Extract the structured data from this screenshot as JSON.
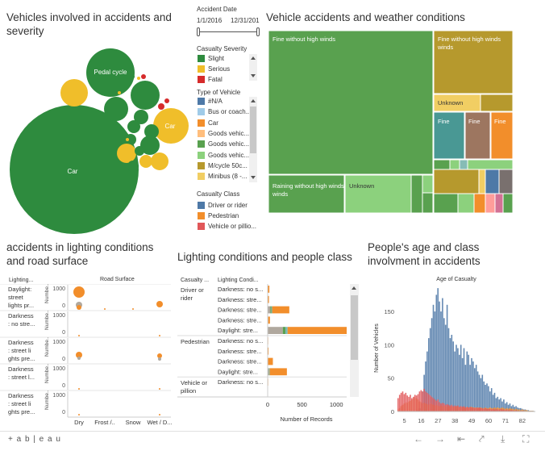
{
  "bubble": {
    "title_line1": "Vehicles involved in accidents and",
    "title_line2": "severity",
    "labels": {
      "car_big": "Car",
      "pedal_cycle": "Pedal cycle",
      "car_small": "Car"
    }
  },
  "filter": {
    "date_title": "Accident Date",
    "date_start": "1/1/2016",
    "date_end": "12/31/201",
    "severity_title": "Casualty Severity",
    "severity_items": [
      {
        "label": "Slight",
        "color": "#2e8b3e"
      },
      {
        "label": "Serious",
        "color": "#f0be2a"
      },
      {
        "label": "Fatal",
        "color": "#d62b2b"
      }
    ],
    "vehicle_title": "Type of Vehicle",
    "vehicle_items": [
      {
        "label": "#N/A",
        "color": "#4e79a7"
      },
      {
        "label": "Bus or coach..",
        "color": "#a0cbe8"
      },
      {
        "label": "Car",
        "color": "#f28e2b"
      },
      {
        "label": "Goods vehic...",
        "color": "#ffbe7d"
      },
      {
        "label": "Goods vehic...",
        "color": "#59a14f"
      },
      {
        "label": "Goods vehic...",
        "color": "#8cd17d"
      },
      {
        "label": "M/cycle 50c...",
        "color": "#b6992d"
      },
      {
        "label": "Minibus (8 -...",
        "color": "#f1ce63"
      }
    ],
    "class_title": "Casualty Class",
    "class_items": [
      {
        "label": "Driver or rider",
        "color": "#4e79a7"
      },
      {
        "label": "Pedestrian",
        "color": "#f28e2b"
      },
      {
        "label": "Vehicle or pillio...",
        "color": "#e15759"
      }
    ]
  },
  "treemap": {
    "title": "Vehicle accidents and weather conditions",
    "labels": {
      "fine_big": "Fine without high winds",
      "fine_right": "Fine without high winds",
      "unknown_small": "Unknown",
      "fine1": "Fine",
      "fine2": "Fine",
      "fine3": "Fine",
      "raining": "Raining without high winds",
      "unknown_bottom": "Unknown"
    }
  },
  "lighting_road": {
    "title_line1": "accidents in lighting conditions",
    "title_line2": "and road surface",
    "col_header": "Lighting...",
    "road_header": "Road Surface",
    "row_labels": [
      [
        "Daylight:",
        "street",
        "lights pr..."
      ],
      [
        "Darkness",
        ": no stre..."
      ],
      [
        "Darkness",
        ": street li",
        "ghts pre..."
      ],
      [
        "Darkness",
        ": street l..."
      ],
      [
        "Darkness",
        ": street li",
        "ghts pre..."
      ]
    ],
    "y_axis_label": "Numbe..",
    "y_ticks": [
      "1000",
      "0"
    ],
    "x_labels": [
      "Dry",
      "Frost /..",
      "Snow",
      "Wet / D..."
    ]
  },
  "lighting_people": {
    "title": "Lighting conditions and people class",
    "col1_header": "Casualty ...",
    "col2_header": "Lighting Condi...",
    "groups": [
      {
        "name_lines": [
          "Driver or",
          "rider"
        ],
        "rows": [
          "Darkness: no s...",
          "Darkness: stre...",
          "Darkness: stre...",
          "Darkness: stre...",
          "Daylight: stre..."
        ]
      },
      {
        "name_lines": [
          "Pedestrian"
        ],
        "rows": [
          "Darkness: no s...",
          "Darkness: stre...",
          "Darkness: stre...",
          "Daylight: stre..."
        ]
      },
      {
        "name_lines": [
          "Vehicle or",
          "pillion"
        ],
        "rows": [
          "Darkness: no s..."
        ]
      }
    ],
    "x_ticks": [
      "0",
      "500",
      "1000"
    ],
    "x_label": "Number of Records"
  },
  "age": {
    "title_line1": "People's age and class",
    "title_line2": "involvment in accidents",
    "chart_title": "Age of Casualty",
    "y_label": "Number of Vehicles",
    "y_ticks": [
      "150",
      "100",
      "50",
      "0"
    ],
    "x_ticks": [
      "5",
      "16",
      "27",
      "38",
      "49",
      "60",
      "71",
      "82"
    ]
  },
  "footer": {
    "logo": "+ a b | e a u"
  },
  "chart_data": [
    {
      "type": "histogram",
      "title": "Age of Casualty",
      "ylabel": "Number of Vehicles",
      "xlabel": "",
      "ylim": [
        0,
        190
      ],
      "x_ticks": [
        5,
        16,
        27,
        38,
        49,
        60,
        71,
        82
      ],
      "series": [
        {
          "name": "Driver or rider",
          "color": "#4e79a7",
          "ages": [
            1,
            2,
            3,
            4,
            5,
            6,
            7,
            8,
            9,
            10,
            11,
            12,
            13,
            14,
            15,
            16,
            17,
            18,
            19,
            20,
            21,
            22,
            23,
            24,
            25,
            26,
            27,
            28,
            29,
            30,
            31,
            32,
            33,
            34,
            35,
            36,
            37,
            38,
            39,
            40,
            41,
            42,
            43,
            44,
            45,
            46,
            47,
            48,
            49,
            50,
            51,
            52,
            53,
            54,
            55,
            56,
            57,
            58,
            59,
            60,
            61,
            62,
            63,
            64,
            65,
            66,
            67,
            68,
            69,
            70,
            71,
            72,
            73,
            74,
            75,
            76,
            77,
            78,
            79,
            80,
            81,
            82,
            83,
            84,
            85,
            86,
            87,
            88,
            89,
            90
          ],
          "values": [
            0,
            0,
            0,
            0,
            0,
            0,
            0,
            0,
            0,
            0,
            0,
            0,
            0,
            2,
            5,
            12,
            30,
            55,
            75,
            90,
            110,
            125,
            140,
            160,
            150,
            175,
            185,
            165,
            150,
            170,
            140,
            130,
            160,
            125,
            110,
            115,
            105,
            90,
            100,
            95,
            85,
            100,
            80,
            95,
            70,
            90,
            85,
            70,
            80,
            75,
            65,
            70,
            60,
            55,
            50,
            55,
            45,
            40,
            42,
            38,
            30,
            35,
            25,
            28,
            20,
            22,
            18,
            20,
            15,
            18,
            12,
            14,
            10,
            12,
            8,
            10,
            7,
            8,
            6,
            5,
            5,
            4,
            3,
            3,
            2,
            2,
            1,
            1,
            1,
            0
          ]
        },
        {
          "name": "Pedestrian",
          "color": "#f28e2b",
          "ages": [
            1,
            2,
            3,
            4,
            5,
            6,
            7,
            8,
            9,
            10,
            11,
            12,
            13,
            14,
            15,
            16,
            17,
            18,
            19,
            20,
            21,
            22,
            23,
            24,
            25,
            26,
            27,
            28,
            29,
            30,
            31,
            32,
            33,
            34,
            35,
            36,
            37,
            38,
            39,
            40,
            41,
            42,
            43,
            44,
            45,
            46,
            47,
            48,
            49,
            50,
            51,
            52,
            53,
            54,
            55,
            56,
            57,
            58,
            59,
            60,
            61,
            62,
            63,
            64,
            65,
            66,
            67,
            68,
            69,
            70,
            71,
            72,
            73,
            74,
            75,
            76,
            77,
            78,
            79,
            80,
            81,
            82,
            83,
            84,
            85,
            86,
            87,
            88,
            89,
            90
          ],
          "values": [
            3,
            5,
            8,
            10,
            12,
            14,
            13,
            15,
            16,
            18,
            20,
            22,
            20,
            18,
            15,
            14,
            12,
            13,
            12,
            11,
            10,
            12,
            11,
            10,
            9,
            10,
            9,
            8,
            9,
            8,
            8,
            9,
            7,
            8,
            7,
            8,
            7,
            7,
            8,
            7,
            6,
            7,
            6,
            7,
            6,
            7,
            6,
            6,
            7,
            6,
            6,
            5,
            6,
            5,
            6,
            5,
            5,
            6,
            5,
            5,
            6,
            5,
            5,
            6,
            5,
            6,
            5,
            5,
            6,
            5,
            4,
            5,
            4,
            5,
            4,
            4,
            3,
            4,
            3,
            3,
            2,
            3,
            2,
            2,
            2,
            1,
            1,
            1,
            1,
            0
          ]
        },
        {
          "name": "Vehicle or pillion",
          "color": "#e15759",
          "ages": [
            1,
            2,
            3,
            4,
            5,
            6,
            7,
            8,
            9,
            10,
            11,
            12,
            13,
            14,
            15,
            16,
            17,
            18,
            19,
            20,
            21,
            22,
            23,
            24,
            25,
            26,
            27,
            28,
            29,
            30,
            31,
            32,
            33,
            34,
            35,
            36,
            37,
            38,
            39,
            40,
            41,
            42,
            43,
            44,
            45,
            46,
            47,
            48,
            49,
            50,
            51,
            52,
            53,
            54,
            55,
            56,
            57,
            58,
            59,
            60,
            61,
            62,
            63,
            64,
            65,
            66,
            67,
            68,
            69,
            70,
            71,
            72,
            73,
            74,
            75,
            76,
            77,
            78,
            79,
            80,
            81,
            82,
            83,
            84,
            85,
            86,
            87,
            88,
            89,
            90
          ],
          "values": [
            20,
            25,
            28,
            30,
            26,
            28,
            24,
            22,
            25,
            20,
            22,
            25,
            24,
            26,
            30,
            32,
            30,
            34,
            30,
            28,
            26,
            24,
            22,
            20,
            18,
            16,
            18,
            14,
            12,
            13,
            12,
            10,
            11,
            10,
            9,
            10,
            8,
            9,
            8,
            9,
            7,
            8,
            7,
            8,
            6,
            7,
            6,
            7,
            6,
            6,
            5,
            6,
            5,
            6,
            5,
            5,
            4,
            5,
            4,
            4,
            4,
            3,
            4,
            3,
            4,
            3,
            3,
            4,
            3,
            3,
            2,
            3,
            2,
            2,
            2,
            2,
            1,
            2,
            1,
            1,
            1,
            1,
            1,
            0,
            0,
            0,
            0,
            0,
            0,
            0
          ]
        }
      ]
    },
    {
      "type": "bar",
      "title": "Lighting conditions and people class",
      "xlabel": "Number of Records",
      "xlim": [
        0,
        1150
      ],
      "categories": [
        "Driver or rider / Darkness: no s...",
        "Driver or rider / Darkness: stre...",
        "Driver or rider / Darkness: stre...",
        "Driver or rider / Darkness: stre...",
        "Driver or rider / Daylight: stre...",
        "Pedestrian / Darkness: no s...",
        "Pedestrian / Darkness: stre...",
        "Pedestrian / Darkness: stre...",
        "Pedestrian / Daylight: stre...",
        "Vehicle or pillion / Darkness: no s..."
      ],
      "series": [
        {
          "name": "Grey",
          "color": "#b0a89e",
          "values": [
            5,
            4,
            40,
            8,
            220,
            2,
            3,
            6,
            20,
            2
          ]
        },
        {
          "name": "Green",
          "color": "#59a14f",
          "values": [
            0,
            0,
            15,
            0,
            40,
            0,
            0,
            0,
            5,
            0
          ]
        },
        {
          "name": "Teal",
          "color": "#76b7b2",
          "values": [
            0,
            0,
            10,
            0,
            30,
            0,
            0,
            0,
            5,
            0
          ]
        },
        {
          "name": "Orange",
          "color": "#f28e2b",
          "values": [
            20,
            15,
            250,
            25,
            860,
            5,
            10,
            70,
            250,
            5
          ]
        }
      ]
    },
    {
      "type": "treemap",
      "title": "Vehicle accidents and weather conditions",
      "series": [
        {
          "name": "Fine without high winds",
          "color": "#59a14f",
          "values": [
            4800
          ]
        },
        {
          "name": "Fine without high winds",
          "color": "#b6992d",
          "values": [
            750
          ]
        },
        {
          "name": "Raining without high winds",
          "color": "#59a14f",
          "values": [
            700
          ]
        },
        {
          "name": "Unknown",
          "color": "#8cd17d",
          "values": [
            420
          ]
        },
        {
          "name": "Unknown",
          "color": "#f1ce63",
          "values": [
            160
          ]
        },
        {
          "name": "Fine",
          "color": "#499894",
          "values": [
            200
          ]
        },
        {
          "name": "Fine",
          "color": "#9d7660",
          "values": [
            160
          ]
        },
        {
          "name": "Fine",
          "color": "#f28e2b",
          "values": [
            130
          ]
        }
      ]
    }
  ]
}
